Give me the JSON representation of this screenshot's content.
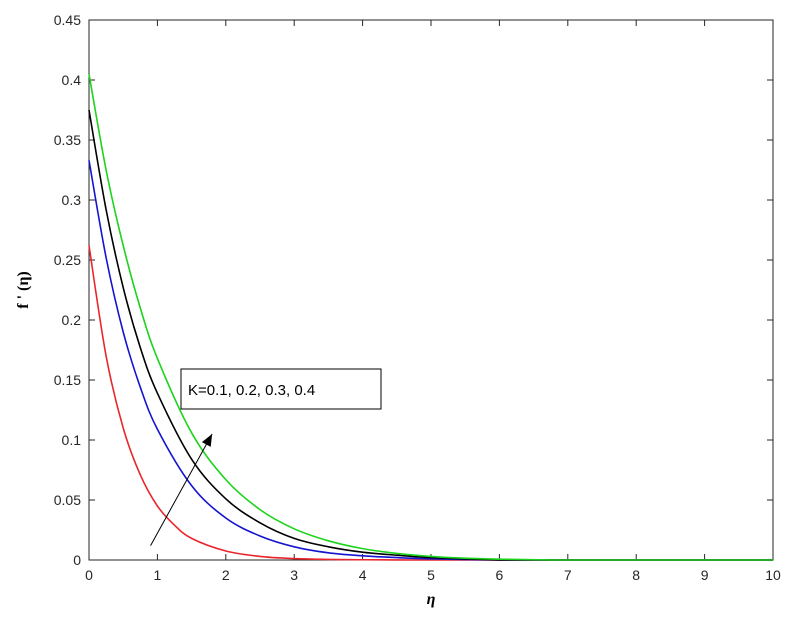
{
  "chart_data": {
    "type": "line",
    "title": "",
    "xlabel": "η",
    "ylabel": "f ' (η)",
    "xlim": [
      0,
      10
    ],
    "ylim": [
      0,
      0.45
    ],
    "xticks": [
      "0",
      "1",
      "2",
      "3",
      "4",
      "5",
      "6",
      "7",
      "8",
      "9",
      "10"
    ],
    "yticks": [
      "0",
      "0.05",
      "0.1",
      "0.15",
      "0.2",
      "0.25",
      "0.3",
      "0.35",
      "0.4",
      "0.45"
    ],
    "grid": false,
    "annotation": {
      "text": "K=0.1, 0.2, 0.3, 0.4",
      "arrow_from": [
        0.9,
        0.012
      ],
      "arrow_to": [
        1.8,
        0.105
      ]
    },
    "series": [
      {
        "color": "#e8262b",
        "x": [
          0,
          0.25,
          0.5,
          0.75,
          1,
          1.25,
          1.5,
          2,
          2.5,
          3,
          3.5,
          4,
          5
        ],
        "y": [
          0.262,
          0.17,
          0.11,
          0.071,
          0.045,
          0.029,
          0.018,
          0.0075,
          0.003,
          0.0012,
          0.0005,
          0.0002,
          0
        ]
      },
      {
        "color": "#1414d0",
        "x": [
          0,
          0.25,
          0.5,
          0.75,
          1,
          1.5,
          2,
          2.5,
          3,
          3.5,
          4,
          4.5,
          5,
          6
        ],
        "y": [
          0.333,
          0.252,
          0.19,
          0.144,
          0.109,
          0.062,
          0.035,
          0.02,
          0.011,
          0.006,
          0.0035,
          0.002,
          0.001,
          0
        ]
      },
      {
        "color": "#000000",
        "x": [
          0,
          0.25,
          0.5,
          0.75,
          1,
          1.5,
          2,
          2.5,
          3,
          3.5,
          4,
          4.5,
          5,
          6
        ],
        "y": [
          0.375,
          0.292,
          0.227,
          0.177,
          0.139,
          0.084,
          0.051,
          0.031,
          0.018,
          0.011,
          0.0065,
          0.004,
          0.002,
          0
        ]
      },
      {
        "color": "#1bd41b",
        "x": [
          0,
          0.25,
          0.5,
          0.75,
          1,
          1.5,
          2,
          2.5,
          3,
          3.5,
          4,
          4.5,
          5,
          5.5,
          6,
          6.8
        ],
        "y": [
          0.405,
          0.325,
          0.262,
          0.21,
          0.168,
          0.106,
          0.067,
          0.042,
          0.026,
          0.016,
          0.0095,
          0.0055,
          0.003,
          0.0015,
          0.0007,
          0
        ]
      }
    ]
  }
}
